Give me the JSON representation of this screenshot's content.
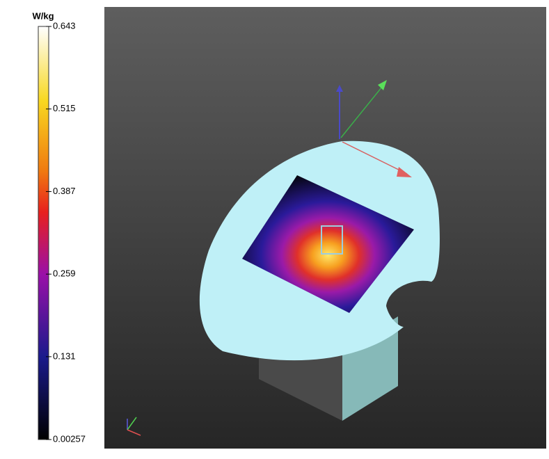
{
  "chart_data": {
    "type": "colorbar",
    "label": "W/kg",
    "ylim": [
      0.00257,
      0.643
    ],
    "yticks": [
      0.00257,
      0.131,
      0.259,
      0.387,
      0.515,
      0.643
    ]
  }
}
